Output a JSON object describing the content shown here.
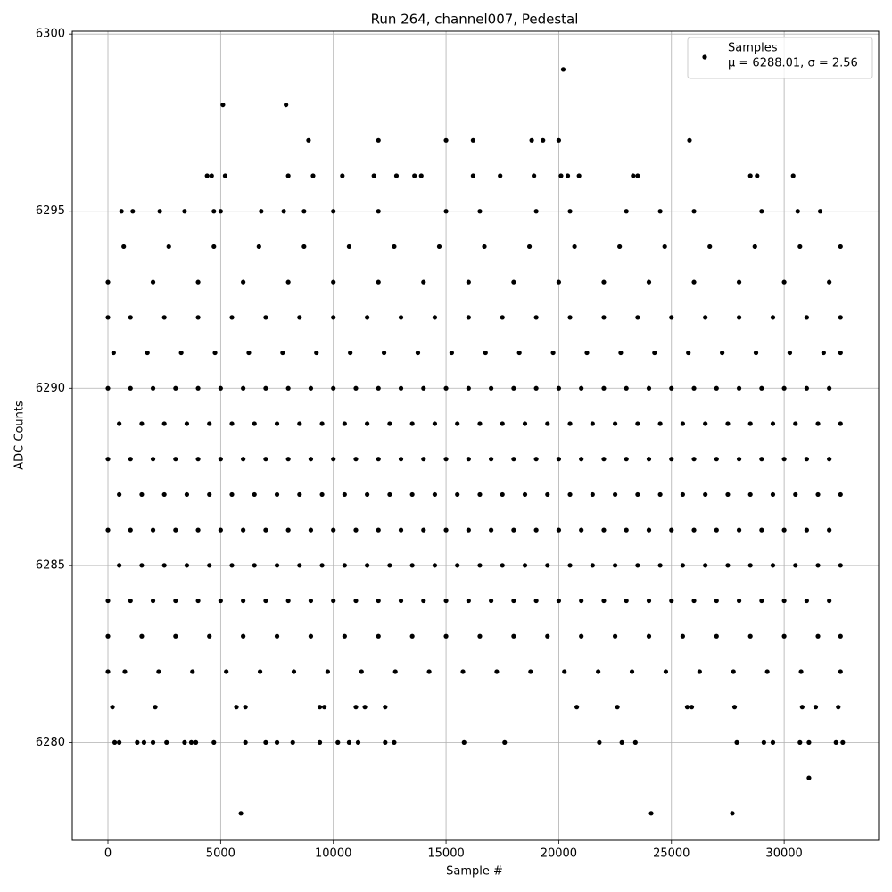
{
  "chart_data": {
    "type": "scatter",
    "title": "Run 264, channel007, Pedestal",
    "x_label": "Sample #",
    "y_label": "ADC Counts",
    "xlim": [
      -1583,
      34190
    ],
    "ylim": [
      6277.24,
      6300.08
    ],
    "xticks": [
      0,
      5000,
      10000,
      15000,
      20000,
      25000,
      30000
    ],
    "yticks": [
      6280,
      6285,
      6290,
      6295,
      6300
    ],
    "grid": true,
    "legend": "upper right",
    "series": [
      {
        "name": "Samples",
        "legend_label": "μ = 6288.01, σ = 2.56",
        "color": "#000000",
        "x": [
          0,
          1000,
          2000,
          3000,
          4000,
          5000,
          6000,
          7000,
          8000,
          9000,
          10000,
          11000,
          12000,
          13000,
          14000,
          15000,
          16000,
          17000,
          18000,
          19000,
          20000,
          21000,
          22000,
          23000,
          24000,
          25000,
          26000,
          27000,
          28000,
          29000,
          30000,
          31000,
          32000,
          500,
          1500,
          2500,
          3500,
          4500,
          5500,
          6500,
          7500,
          8500,
          9500,
          10500,
          11500,
          12500,
          13500,
          14500,
          15500,
          16500,
          17500,
          18500,
          19500,
          20500,
          21500,
          22500,
          23500,
          24500,
          25500,
          26500,
          27500,
          28500,
          29500,
          30500,
          31500,
          32500,
          0,
          1000,
          2000,
          3000,
          4000,
          5000,
          6000,
          7000,
          8000,
          9000,
          10000,
          11000,
          12000,
          13000,
          14000,
          15000,
          16000,
          17000,
          18000,
          19000,
          20000,
          21000,
          22000,
          23000,
          24000,
          25000,
          26000,
          27000,
          28000,
          29000,
          30000,
          31000,
          32000,
          500,
          1500,
          2500,
          3500,
          4500,
          5500,
          6500,
          7500,
          8500,
          9500,
          10500,
          11500,
          12500,
          13500,
          14500,
          15500,
          16500,
          17500,
          18500,
          19500,
          20500,
          21500,
          22500,
          23500,
          24500,
          25500,
          26500,
          27500,
          28500,
          29500,
          30500,
          31500,
          32500,
          0,
          1000,
          2000,
          3000,
          4000,
          5000,
          6000,
          7000,
          8000,
          9000,
          10000,
          11000,
          12000,
          13000,
          14000,
          15000,
          16000,
          17000,
          18000,
          19000,
          20000,
          21000,
          22000,
          23000,
          24000,
          25000,
          26000,
          27000,
          28000,
          29000,
          30000,
          31000,
          32000,
          500,
          1500,
          2500,
          3500,
          4500,
          5500,
          6500,
          7500,
          8500,
          9500,
          10500,
          11500,
          12500,
          13500,
          14500,
          15500,
          16500,
          17500,
          18500,
          19500,
          20500,
          21500,
          22500,
          23500,
          24500,
          25500,
          26500,
          27500,
          28500,
          29500,
          30500,
          31500,
          32500,
          0,
          1000,
          2000,
          3000,
          4000,
          5000,
          6000,
          7000,
          8000,
          9000,
          10000,
          11000,
          12000,
          13000,
          14000,
          15000,
          16000,
          17000,
          18000,
          19000,
          20000,
          21000,
          22000,
          23000,
          24000,
          25000,
          26000,
          27000,
          28000,
          29000,
          30000,
          31000,
          32000,
          250,
          1750,
          3250,
          4750,
          6250,
          7750,
          9250,
          10750,
          12250,
          13750,
          15250,
          16750,
          18250,
          19750,
          21250,
          22750,
          24250,
          25750,
          27250,
          28750,
          30250,
          31750,
          32500,
          0,
          1000,
          2500,
          4000,
          5500,
          7000,
          8500,
          10000,
          11500,
          13000,
          14500,
          16000,
          17500,
          19000,
          20500,
          22000,
          23500,
          25000,
          26500,
          28000,
          29500,
          31000,
          32500,
          0,
          1500,
          3000,
          4500,
          6000,
          7500,
          9000,
          10500,
          12000,
          13500,
          15000,
          16500,
          18000,
          19500,
          21000,
          22500,
          24000,
          25500,
          27000,
          28500,
          30000,
          31500,
          32500,
          0,
          750,
          2250,
          3750,
          5250,
          6750,
          8250,
          9750,
          11250,
          12750,
          14250,
          15750,
          17250,
          18750,
          20250,
          21750,
          23250,
          24750,
          26250,
          27750,
          29250,
          30750,
          32500,
          0,
          2000,
          4000,
          6000,
          8000,
          10000,
          12000,
          14000,
          16000,
          18000,
          20000,
          22000,
          24000,
          26000,
          28000,
          30000,
          32000,
          700,
          2700,
          4700,
          6700,
          8700,
          10700,
          12700,
          14700,
          16700,
          18700,
          20700,
          22700,
          24700,
          26700,
          28700,
          30700,
          32500,
          600,
          1100,
          2300,
          3400,
          4700,
          5000,
          6800,
          7800,
          8700,
          10000,
          12000,
          15000,
          16500,
          19000,
          20500,
          23000,
          24500,
          26000,
          29000,
          30600,
          31600,
          4400,
          4600,
          5200,
          8000,
          9100,
          10400,
          11800,
          12800,
          13600,
          13900,
          16200,
          17400,
          18900,
          20100,
          20400,
          20900,
          23300,
          23500,
          28500,
          28800,
          30400,
          8900,
          12000,
          15000,
          16200,
          18800,
          19300,
          20000,
          25800,
          5100,
          7900,
          20200,
          200,
          2100,
          5700,
          6100,
          9400,
          9600,
          11000,
          11400,
          12300,
          20800,
          22600,
          25700,
          25900,
          27800,
          30800,
          31400,
          32400,
          300,
          500,
          1300,
          1600,
          2000,
          2600,
          3400,
          3700,
          3900,
          4700,
          6100,
          7000,
          7500,
          8200,
          9400,
          10200,
          10700,
          11100,
          12300,
          12700,
          15800,
          17600,
          21800,
          22800,
          23400,
          27900,
          29100,
          29500,
          30700,
          31100,
          32300,
          32600,
          31100,
          5900,
          24100,
          27700
        ],
        "y": [
          6284,
          6284,
          6284,
          6284,
          6284,
          6284,
          6284,
          6284,
          6284,
          6284,
          6284,
          6284,
          6284,
          6284,
          6284,
          6284,
          6284,
          6284,
          6284,
          6284,
          6284,
          6284,
          6284,
          6284,
          6284,
          6284,
          6284,
          6284,
          6284,
          6284,
          6284,
          6284,
          6284,
          6285,
          6285,
          6285,
          6285,
          6285,
          6285,
          6285,
          6285,
          6285,
          6285,
          6285,
          6285,
          6285,
          6285,
          6285,
          6285,
          6285,
          6285,
          6285,
          6285,
          6285,
          6285,
          6285,
          6285,
          6285,
          6285,
          6285,
          6285,
          6285,
          6285,
          6285,
          6285,
          6285,
          6286,
          6286,
          6286,
          6286,
          6286,
          6286,
          6286,
          6286,
          6286,
          6286,
          6286,
          6286,
          6286,
          6286,
          6286,
          6286,
          6286,
          6286,
          6286,
          6286,
          6286,
          6286,
          6286,
          6286,
          6286,
          6286,
          6286,
          6286,
          6286,
          6286,
          6286,
          6286,
          6286,
          6287,
          6287,
          6287,
          6287,
          6287,
          6287,
          6287,
          6287,
          6287,
          6287,
          6287,
          6287,
          6287,
          6287,
          6287,
          6287,
          6287,
          6287,
          6287,
          6287,
          6287,
          6287,
          6287,
          6287,
          6287,
          6287,
          6287,
          6287,
          6287,
          6287,
          6287,
          6287,
          6287,
          6288,
          6288,
          6288,
          6288,
          6288,
          6288,
          6288,
          6288,
          6288,
          6288,
          6288,
          6288,
          6288,
          6288,
          6288,
          6288,
          6288,
          6288,
          6288,
          6288,
          6288,
          6288,
          6288,
          6288,
          6288,
          6288,
          6288,
          6288,
          6288,
          6288,
          6288,
          6288,
          6288,
          6289,
          6289,
          6289,
          6289,
          6289,
          6289,
          6289,
          6289,
          6289,
          6289,
          6289,
          6289,
          6289,
          6289,
          6289,
          6289,
          6289,
          6289,
          6289,
          6289,
          6289,
          6289,
          6289,
          6289,
          6289,
          6289,
          6289,
          6289,
          6289,
          6289,
          6289,
          6289,
          6289,
          6290,
          6290,
          6290,
          6290,
          6290,
          6290,
          6290,
          6290,
          6290,
          6290,
          6290,
          6290,
          6290,
          6290,
          6290,
          6290,
          6290,
          6290,
          6290,
          6290,
          6290,
          6290,
          6290,
          6290,
          6290,
          6290,
          6290,
          6290,
          6290,
          6290,
          6290,
          6290,
          6290,
          6291,
          6291,
          6291,
          6291,
          6291,
          6291,
          6291,
          6291,
          6291,
          6291,
          6291,
          6291,
          6291,
          6291,
          6291,
          6291,
          6291,
          6291,
          6291,
          6291,
          6291,
          6291,
          6291,
          6292,
          6292,
          6292,
          6292,
          6292,
          6292,
          6292,
          6292,
          6292,
          6292,
          6292,
          6292,
          6292,
          6292,
          6292,
          6292,
          6292,
          6292,
          6292,
          6292,
          6292,
          6292,
          6292,
          6283,
          6283,
          6283,
          6283,
          6283,
          6283,
          6283,
          6283,
          6283,
          6283,
          6283,
          6283,
          6283,
          6283,
          6283,
          6283,
          6283,
          6283,
          6283,
          6283,
          6283,
          6283,
          6283,
          6282,
          6282,
          6282,
          6282,
          6282,
          6282,
          6282,
          6282,
          6282,
          6282,
          6282,
          6282,
          6282,
          6282,
          6282,
          6282,
          6282,
          6282,
          6282,
          6282,
          6282,
          6282,
          6282,
          6293,
          6293,
          6293,
          6293,
          6293,
          6293,
          6293,
          6293,
          6293,
          6293,
          6293,
          6293,
          6293,
          6293,
          6293,
          6293,
          6293,
          6294,
          6294,
          6294,
          6294,
          6294,
          6294,
          6294,
          6294,
          6294,
          6294,
          6294,
          6294,
          6294,
          6294,
          6294,
          6294,
          6294,
          6295,
          6295,
          6295,
          6295,
          6295,
          6295,
          6295,
          6295,
          6295,
          6295,
          6295,
          6295,
          6295,
          6295,
          6295,
          6295,
          6295,
          6295,
          6295,
          6295,
          6295,
          6296,
          6296,
          6296,
          6296,
          6296,
          6296,
          6296,
          6296,
          6296,
          6296,
          6296,
          6296,
          6296,
          6296,
          6296,
          6296,
          6296,
          6296,
          6296,
          6296,
          6296,
          6297,
          6297,
          6297,
          6297,
          6297,
          6297,
          6297,
          6297,
          6298,
          6298,
          6299,
          6281,
          6281,
          6281,
          6281,
          6281,
          6281,
          6281,
          6281,
          6281,
          6281,
          6281,
          6281,
          6281,
          6281,
          6281,
          6281,
          6281,
          6280,
          6280,
          6280,
          6280,
          6280,
          6280,
          6280,
          6280,
          6280,
          6280,
          6280,
          6280,
          6280,
          6280,
          6280,
          6280,
          6280,
          6280,
          6280,
          6280,
          6280,
          6280,
          6280,
          6280,
          6280,
          6280,
          6280,
          6280,
          6280,
          6280,
          6280,
          6280,
          6279,
          6278,
          6278,
          6278
        ]
      }
    ]
  }
}
